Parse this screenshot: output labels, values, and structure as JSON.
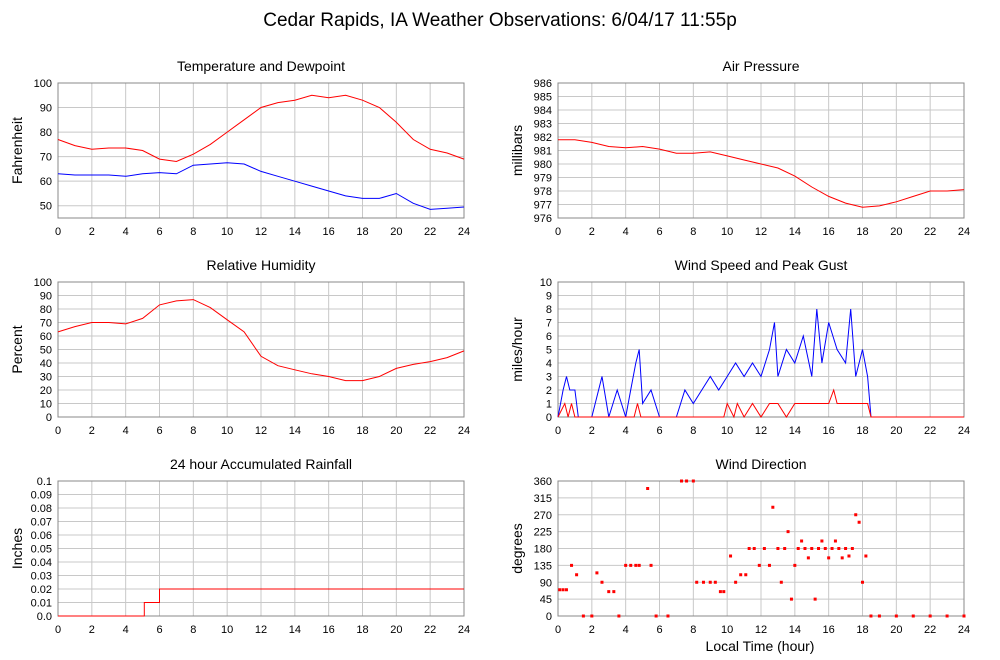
{
  "page": {
    "title": "Cedar Rapids, IA Weather Observations: 6/04/17 11:55p",
    "xlabel": "Local Time (hour)"
  },
  "colors": {
    "red": "#ff0000",
    "blue": "#0000ff",
    "grid": "#c8c8c8"
  },
  "chart_data": [
    {
      "id": "temp",
      "type": "line",
      "title": "Temperature and Dewpoint",
      "ylabel": "Fahrenheit",
      "xlim": [
        0,
        24
      ],
      "ylim": [
        45,
        100
      ],
      "xticks": [
        0,
        2,
        4,
        6,
        8,
        10,
        12,
        14,
        16,
        18,
        20,
        22,
        24
      ],
      "yticks": [
        50,
        60,
        70,
        80,
        90,
        100
      ],
      "grid": true,
      "series": [
        {
          "color": "#ff0000",
          "x": [
            0,
            1,
            2,
            3,
            4,
            5,
            6,
            7,
            8,
            9,
            10,
            11,
            12,
            13,
            14,
            15,
            16,
            17,
            18,
            19,
            20,
            21,
            22,
            23,
            24
          ],
          "values": [
            77,
            74.5,
            73,
            73.5,
            73.5,
            72.5,
            69,
            68,
            71,
            75,
            80,
            85,
            90,
            92,
            93,
            95,
            94,
            95,
            93,
            90,
            84,
            77,
            73,
            71.5,
            69
          ]
        },
        {
          "color": "#0000ff",
          "x": [
            0,
            1,
            2,
            3,
            4,
            5,
            6,
            7,
            8,
            9,
            10,
            11,
            12,
            13,
            14,
            15,
            16,
            17,
            18,
            19,
            20,
            21,
            22,
            23,
            24
          ],
          "values": [
            63,
            62.5,
            62.5,
            62.5,
            62,
            63,
            63.5,
            63,
            66.5,
            67,
            67.5,
            67,
            64,
            62,
            60,
            58,
            56,
            54,
            53,
            53,
            55,
            51,
            48.5,
            49,
            49.5
          ]
        }
      ]
    },
    {
      "id": "pressure",
      "type": "line",
      "title": "Air Pressure",
      "ylabel": "millibars",
      "xlim": [
        0,
        24
      ],
      "ylim": [
        976,
        986
      ],
      "xticks": [
        0,
        2,
        4,
        6,
        8,
        10,
        12,
        14,
        16,
        18,
        20,
        22,
        24
      ],
      "yticks": [
        976,
        977,
        978,
        979,
        980,
        981,
        982,
        983,
        984,
        985,
        986
      ],
      "grid": true,
      "series": [
        {
          "color": "#ff0000",
          "x": [
            0,
            1,
            2,
            3,
            4,
            5,
            6,
            7,
            8,
            9,
            10,
            11,
            12,
            13,
            14,
            15,
            16,
            17,
            18,
            19,
            20,
            21,
            22,
            23,
            24
          ],
          "values": [
            981.8,
            981.8,
            981.6,
            981.3,
            981.2,
            981.3,
            981.1,
            980.8,
            980.8,
            980.9,
            980.6,
            980.3,
            980,
            979.7,
            979.1,
            978.3,
            977.6,
            977.1,
            976.8,
            976.9,
            977.2,
            977.6,
            978,
            978,
            978.1
          ]
        }
      ]
    },
    {
      "id": "rh",
      "type": "line",
      "title": "Relative Humidity",
      "ylabel": "Percent",
      "xlim": [
        0,
        24
      ],
      "ylim": [
        0,
        100
      ],
      "xticks": [
        0,
        2,
        4,
        6,
        8,
        10,
        12,
        14,
        16,
        18,
        20,
        22,
        24
      ],
      "yticks": [
        0,
        10,
        20,
        30,
        40,
        50,
        60,
        70,
        80,
        90,
        100
      ],
      "grid": true,
      "series": [
        {
          "color": "#ff0000",
          "x": [
            0,
            1,
            2,
            3,
            4,
            5,
            6,
            7,
            8,
            9,
            10,
            11,
            12,
            13,
            14,
            15,
            16,
            17,
            18,
            19,
            20,
            21,
            22,
            23,
            24
          ],
          "values": [
            63,
            67,
            70,
            70,
            69,
            73,
            83,
            86,
            87,
            81,
            72,
            63,
            45,
            38,
            35,
            32,
            30,
            27,
            27,
            30,
            36,
            39,
            41,
            44,
            49
          ]
        }
      ]
    },
    {
      "id": "wind",
      "type": "line",
      "title": "Wind Speed and Peak Gust",
      "ylabel": "miles/hour",
      "xlim": [
        0,
        24
      ],
      "ylim": [
        0,
        10
      ],
      "xticks": [
        0,
        2,
        4,
        6,
        8,
        10,
        12,
        14,
        16,
        18,
        20,
        22,
        24
      ],
      "yticks": [
        0,
        1,
        2,
        3,
        4,
        5,
        6,
        7,
        8,
        9,
        10
      ],
      "grid": true,
      "series": [
        {
          "color": "#0000ff",
          "x": [
            0,
            0.3,
            0.5,
            0.7,
            1.0,
            1.2,
            2.0,
            2.4,
            2.6,
            3.0,
            3.5,
            4.0,
            4.3,
            4.6,
            4.8,
            5.0,
            5.5,
            6.0,
            7.0,
            7.5,
            8.0,
            8.5,
            9.0,
            9.5,
            10.0,
            10.5,
            11.0,
            11.5,
            12.0,
            12.5,
            12.8,
            13.0,
            13.5,
            14.0,
            14.5,
            15.0,
            15.3,
            15.6,
            16.0,
            16.5,
            17.0,
            17.3,
            17.6,
            18.0,
            18.3,
            18.5,
            19,
            24
          ],
          "values": [
            0,
            2,
            3,
            2,
            2,
            0,
            0,
            2,
            3,
            0,
            2,
            0,
            2,
            4,
            5,
            1,
            2,
            0,
            0,
            2,
            1,
            2,
            3,
            2,
            3,
            4,
            3,
            4,
            3,
            5,
            7,
            3,
            5,
            4,
            6,
            3,
            8,
            4,
            7,
            5,
            4,
            8,
            3,
            5,
            3,
            0,
            0,
            0
          ]
        },
        {
          "color": "#ff0000",
          "x": [
            0,
            0.4,
            0.6,
            0.8,
            1.0,
            4.5,
            4.7,
            4.9,
            9.8,
            10.0,
            10.4,
            10.6,
            11,
            11.5,
            12,
            12.5,
            13,
            13.5,
            14,
            14.5,
            15,
            15.5,
            16,
            16.3,
            16.5,
            17,
            17.5,
            18,
            18.3,
            18.5,
            24
          ],
          "values": [
            0,
            1,
            0,
            1,
            0,
            0,
            1,
            0,
            0,
            1,
            0,
            1,
            0,
            1,
            0,
            1,
            1,
            0,
            1,
            1,
            1,
            1,
            1,
            2,
            1,
            1,
            1,
            1,
            1,
            0,
            0
          ]
        }
      ]
    },
    {
      "id": "rain",
      "type": "line",
      "title": "24 hour Accumulated Rainfall",
      "ylabel": "Inches",
      "xlim": [
        0,
        24
      ],
      "ylim": [
        0,
        0.1
      ],
      "xticks": [
        0,
        2,
        4,
        6,
        8,
        10,
        12,
        14,
        16,
        18,
        20,
        22,
        24
      ],
      "yticks": [
        0.0,
        0.01,
        0.02,
        0.03,
        0.04,
        0.05,
        0.06,
        0.07,
        0.08,
        0.09,
        0.1
      ],
      "yticklabels": [
        "0.0",
        "0.01",
        "0.02",
        "0.03",
        "0.04",
        "0.05",
        "0.06",
        "0.07",
        "0.08",
        "0.09",
        "0.1"
      ],
      "grid": true,
      "series": [
        {
          "color": "#ff0000",
          "x": [
            0,
            5.1,
            5.1,
            6.0,
            6.0,
            24
          ],
          "values": [
            0,
            0,
            0.01,
            0.01,
            0.02,
            0.02
          ]
        }
      ]
    },
    {
      "id": "dir",
      "type": "scatter",
      "title": "Wind Direction",
      "ylabel": "degrees",
      "xlim": [
        0,
        24
      ],
      "ylim": [
        0,
        360
      ],
      "xticks": [
        0,
        2,
        4,
        6,
        8,
        10,
        12,
        14,
        16,
        18,
        20,
        22,
        24
      ],
      "yticks": [
        0,
        45,
        90,
        135,
        180,
        225,
        270,
        315,
        360
      ],
      "grid": true,
      "series": [
        {
          "color": "#ff0000",
          "points": [
            [
              0.1,
              70
            ],
            [
              0.3,
              70
            ],
            [
              0.5,
              70
            ],
            [
              0.8,
              135
            ],
            [
              1.1,
              110
            ],
            [
              1.5,
              0
            ],
            [
              2.0,
              0
            ],
            [
              2.3,
              115
            ],
            [
              2.6,
              90
            ],
            [
              3.0,
              65
            ],
            [
              3.3,
              65
            ],
            [
              3.6,
              0
            ],
            [
              4.0,
              135
            ],
            [
              4.3,
              135
            ],
            [
              4.6,
              135
            ],
            [
              4.8,
              135
            ],
            [
              5.3,
              340
            ],
            [
              5.5,
              135
            ],
            [
              5.8,
              0
            ],
            [
              6.5,
              0
            ],
            [
              7.3,
              360
            ],
            [
              7.6,
              360
            ],
            [
              8.0,
              360
            ],
            [
              8.2,
              90
            ],
            [
              8.6,
              90
            ],
            [
              9.0,
              90
            ],
            [
              9.3,
              90
            ],
            [
              9.6,
              65
            ],
            [
              9.8,
              65
            ],
            [
              10.2,
              160
            ],
            [
              10.5,
              90
            ],
            [
              10.8,
              110
            ],
            [
              11.1,
              110
            ],
            [
              11.3,
              180
            ],
            [
              11.6,
              180
            ],
            [
              11.9,
              135
            ],
            [
              12.2,
              180
            ],
            [
              12.5,
              135
            ],
            [
              12.7,
              290
            ],
            [
              13.0,
              180
            ],
            [
              13.2,
              90
            ],
            [
              13.4,
              180
            ],
            [
              13.6,
              225
            ],
            [
              13.8,
              45
            ],
            [
              14.0,
              135
            ],
            [
              14.2,
              180
            ],
            [
              14.4,
              200
            ],
            [
              14.6,
              180
            ],
            [
              14.8,
              155
            ],
            [
              15.0,
              180
            ],
            [
              15.2,
              45
            ],
            [
              15.4,
              180
            ],
            [
              15.6,
              200
            ],
            [
              15.8,
              180
            ],
            [
              16.0,
              155
            ],
            [
              16.2,
              180
            ],
            [
              16.4,
              200
            ],
            [
              16.6,
              180
            ],
            [
              16.8,
              155
            ],
            [
              17.0,
              180
            ],
            [
              17.2,
              160
            ],
            [
              17.4,
              180
            ],
            [
              17.6,
              270
            ],
            [
              17.8,
              250
            ],
            [
              18.0,
              90
            ],
            [
              18.2,
              160
            ],
            [
              18.5,
              0
            ],
            [
              19,
              0
            ],
            [
              20,
              0
            ],
            [
              21,
              0
            ],
            [
              22,
              0
            ],
            [
              23,
              0
            ],
            [
              24,
              0
            ]
          ]
        }
      ]
    }
  ]
}
